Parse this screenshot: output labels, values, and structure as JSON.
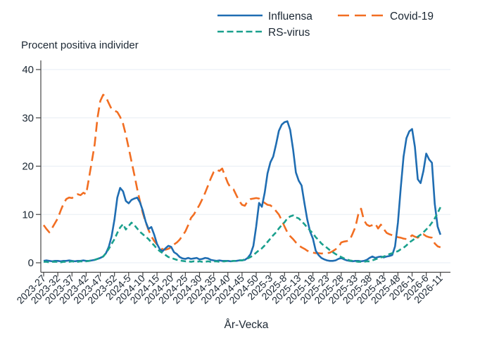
{
  "title": "Procent positiva individer",
  "x_axis_label": "År-Vecka",
  "legend": [
    {
      "label": "Influensa",
      "color": "#1F6DB2",
      "dash": "solid"
    },
    {
      "label": "Covid-19",
      "color": "#F26E22",
      "dash": "long-dash"
    },
    {
      "label": "RS-virus",
      "color": "#1AA08D",
      "dash": "short-dash"
    }
  ],
  "chart_data": {
    "type": "line",
    "title": "Procent positiva individer",
    "xlabel": "År-Vecka",
    "ylabel": "",
    "ylim": [
      0,
      40
    ],
    "yticks": [
      0,
      10,
      20,
      30,
      40
    ],
    "grid": true,
    "x_unit": "year-week, weekly points",
    "x_tick_labels": [
      "2023-27",
      "2023-32",
      "2023-37",
      "2023-42",
      "2023-47",
      "2023-52",
      "2024-5",
      "2024-10",
      "2024-15",
      "2024-20",
      "2024-25",
      "2024-30",
      "2024-35",
      "2024-40",
      "2024-45",
      "2024-50",
      "2025-3",
      "2025-8",
      "2025-13",
      "2025-18",
      "2025-23",
      "2025-28",
      "2025-33",
      "2025-38",
      "2025-43",
      "2025-48",
      "2026-1",
      "2026-6",
      "2026-11"
    ],
    "series": [
      {
        "name": "Influensa",
        "color": "#1F6DB2",
        "style": "solid",
        "values": [
          0.4,
          0.5,
          0.4,
          0.3,
          0.4,
          0.4,
          0.3,
          0.4,
          0.4,
          0.5,
          0.4,
          0.3,
          0.4,
          0.4,
          0.5,
          0.4,
          0.4,
          0.5,
          0.6,
          0.8,
          1.0,
          1.3,
          2.0,
          3.3,
          5.5,
          9.0,
          13.5,
          15.5,
          14.8,
          12.8,
          12.3,
          13.0,
          13.3,
          13.5,
          12.5,
          10.8,
          8.5,
          7.0,
          7.4,
          5.8,
          3.9,
          2.8,
          2.4,
          3.0,
          3.5,
          3.3,
          2.2,
          1.8,
          1.2,
          0.9,
          0.8,
          1.0,
          0.8,
          0.9,
          1.0,
          0.7,
          0.8,
          1.0,
          0.9,
          0.6,
          0.5,
          0.4,
          0.5,
          0.4,
          0.4,
          0.4,
          0.3,
          0.4,
          0.4,
          0.5,
          0.5,
          0.6,
          1.0,
          1.8,
          3.5,
          7.5,
          12.4,
          11.6,
          14.5,
          18.5,
          20.8,
          22.0,
          24.5,
          27.3,
          28.6,
          29.1,
          29.3,
          27.5,
          23.5,
          18.7,
          17.0,
          16.0,
          12.4,
          9.0,
          6.5,
          5.0,
          2.5,
          1.6,
          1.0,
          0.7,
          0.5,
          0.4,
          0.4,
          0.5,
          0.8,
          1.0,
          0.7,
          0.5,
          0.4,
          0.3,
          0.4,
          0.4,
          0.3,
          0.4,
          0.6,
          1.0,
          1.3,
          1.0,
          1.2,
          1.3,
          1.1,
          1.3,
          1.4,
          1.6,
          3.4,
          8.3,
          15.5,
          22.0,
          25.8,
          27.2,
          27.7,
          24.0,
          17.3,
          16.5,
          19.0,
          22.6,
          21.4,
          20.7,
          12.2,
          7.5,
          5.8
        ]
      },
      {
        "name": "Covid-19",
        "color": "#F26E22",
        "style": "long-dash",
        "values": [
          7.8,
          7.0,
          6.3,
          7.2,
          8.2,
          9.2,
          10.8,
          12.2,
          13.2,
          13.5,
          13.4,
          13.8,
          14.2,
          14.0,
          14.5,
          14.2,
          17.5,
          21.0,
          24.5,
          30.0,
          33.5,
          34.8,
          34.3,
          33.0,
          31.8,
          31.5,
          31.2,
          30.2,
          28.8,
          26.5,
          23.8,
          21.0,
          18.2,
          15.3,
          12.7,
          10.3,
          8.4,
          6.8,
          5.5,
          4.5,
          3.8,
          3.2,
          2.8,
          2.7,
          2.9,
          3.2,
          3.8,
          4.2,
          4.8,
          5.6,
          6.5,
          7.8,
          9.3,
          10.0,
          11.0,
          12.0,
          13.2,
          14.5,
          16.0,
          17.5,
          18.8,
          19.3,
          19.0,
          19.5,
          18.0,
          16.5,
          15.5,
          15.2,
          14.0,
          12.8,
          12.0,
          11.8,
          12.8,
          13.2,
          13.3,
          13.4,
          13.3,
          12.8,
          12.4,
          12.0,
          11.9,
          11.4,
          10.7,
          10.0,
          8.8,
          7.5,
          6.3,
          5.5,
          4.9,
          4.2,
          3.6,
          3.2,
          2.9,
          2.5,
          2.2,
          2.1,
          2.0,
          2.0,
          1.9,
          2.0,
          2.0,
          2.1,
          2.4,
          2.8,
          3.2,
          4.2,
          4.4,
          4.5,
          4.7,
          6.0,
          7.4,
          10.0,
          11.2,
          8.8,
          7.9,
          7.6,
          7.8,
          8.1,
          7.1,
          7.9,
          7.0,
          6.2,
          5.9,
          5.7,
          5.5,
          5.3,
          5.2,
          5.0,
          4.9,
          5.2,
          5.7,
          5.4,
          5.2,
          5.6,
          5.9,
          5.5,
          5.3,
          5.2,
          4.0,
          3.4,
          3.2
        ]
      },
      {
        "name": "RS-virus",
        "color": "#1AA08D",
        "style": "short-dash",
        "values": [
          0.2,
          0.2,
          0.1,
          0.2,
          0.2,
          0.2,
          0.1,
          0.2,
          0.2,
          0.2,
          0.3,
          0.2,
          0.2,
          0.3,
          0.3,
          0.3,
          0.4,
          0.5,
          0.6,
          0.8,
          1.0,
          1.3,
          2.0,
          2.9,
          3.9,
          4.9,
          6.2,
          7.3,
          8.0,
          6.9,
          7.6,
          8.3,
          7.8,
          7.1,
          6.4,
          5.9,
          5.4,
          4.9,
          4.2,
          3.6,
          2.9,
          2.4,
          2.0,
          1.6,
          1.2,
          1.0,
          0.8,
          0.6,
          0.5,
          0.4,
          0.3,
          0.3,
          0.2,
          0.3,
          0.2,
          0.3,
          0.2,
          0.2,
          0.3,
          0.2,
          0.3,
          0.3,
          0.2,
          0.3,
          0.3,
          0.4,
          0.3,
          0.4,
          0.4,
          0.5,
          0.5,
          0.7,
          0.9,
          1.2,
          1.6,
          2.1,
          2.6,
          3.0,
          3.6,
          4.3,
          5.0,
          5.7,
          6.3,
          7.1,
          7.8,
          8.4,
          9.2,
          9.6,
          9.8,
          9.4,
          9.2,
          8.6,
          8.0,
          7.3,
          6.7,
          6.1,
          5.3,
          4.7,
          4.0,
          3.5,
          3.1,
          2.6,
          2.2,
          1.8,
          1.5,
          1.2,
          0.9,
          0.7,
          0.5,
          0.4,
          0.3,
          0.2,
          0.2,
          0.2,
          0.3,
          0.3,
          0.5,
          0.7,
          0.9,
          1.1,
          1.3,
          1.5,
          1.8,
          2.0,
          2.2,
          2.4,
          2.8,
          3.1,
          3.6,
          4.2,
          4.6,
          5.0,
          5.4,
          5.8,
          6.3,
          6.9,
          7.5,
          8.3,
          9.2,
          10.3,
          11.5
        ]
      }
    ]
  }
}
